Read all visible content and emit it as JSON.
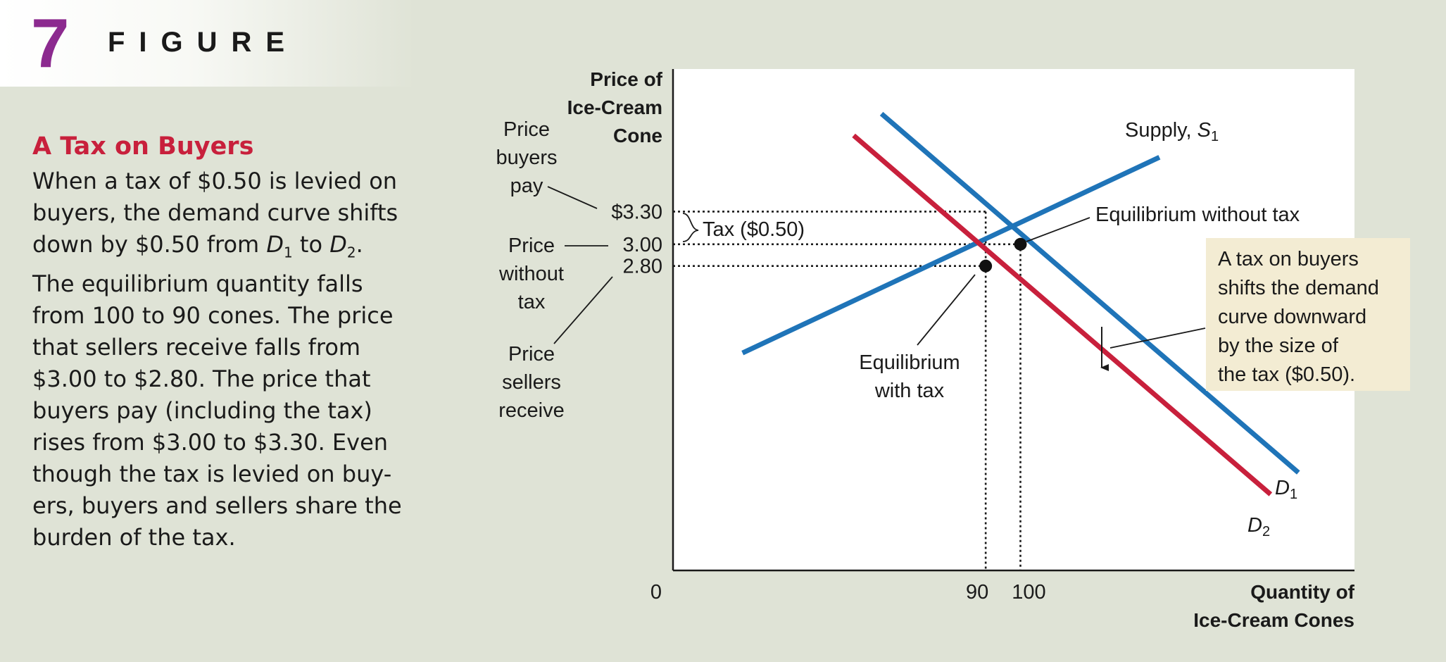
{
  "figure": {
    "number": "7",
    "label": "FIGURE"
  },
  "caption": {
    "title": "A Tax on Buyers",
    "lines": [
      "When a tax of $0.50 is levied on",
      "buyers, the demand curve shifts",
      "The equilibrium quantity falls",
      "from 100 to 90 cones. The price",
      "that sellers receive falls from",
      "$3.00 to $2.80. The price that",
      "buyers pay (including the tax)",
      "rises from $3.00 to $3.30. Even",
      "though the tax is levied on buy-",
      "ers, buyers and sellers share the",
      "burden of the tax."
    ],
    "line3": {
      "pre": "down by $0.50 from ",
      "d1": "D",
      "d1_sub": "1",
      "mid": " to ",
      "d2": "D",
      "d2_sub": "2",
      "post": "."
    }
  },
  "chart_data": {
    "type": "line",
    "ylabel": [
      "Price of",
      "Ice-Cream",
      "Cone"
    ],
    "xlabel": [
      "Quantity of",
      "Ice-Cream Cones"
    ],
    "origin_label": "0",
    "x_ticks": [
      {
        "value": 90,
        "label": "90"
      },
      {
        "value": 100,
        "label": "100"
      }
    ],
    "y_ticks": [
      {
        "value": 3.3,
        "label": "$3.30"
      },
      {
        "value": 3.0,
        "label": "3.00"
      },
      {
        "value": 2.8,
        "label": "2.80"
      }
    ],
    "series": [
      {
        "name": "Supply",
        "sub": "1",
        "letter": "S",
        "color": "#1f74b8",
        "points": [
          [
            20,
            2.0
          ],
          [
            140,
            3.8
          ]
        ]
      },
      {
        "name": "D",
        "sub": "1",
        "color": "#1f74b8",
        "points": [
          [
            60,
            4.2
          ],
          [
            180,
            0.9
          ]
        ]
      },
      {
        "name": "D",
        "sub": "2",
        "color": "#c8203c",
        "points": [
          [
            52,
            4.0
          ],
          [
            172,
            0.7
          ]
        ]
      }
    ],
    "equilibria": [
      {
        "label": "Equilibrium without tax",
        "q": 100,
        "p": 3.0
      },
      {
        "label": "Equilibrium with tax",
        "q": 90,
        "p": 2.8
      }
    ],
    "annotations": {
      "tax_label": "Tax ($0.50)",
      "buyers_pay": [
        "Price",
        "buyers",
        "pay"
      ],
      "without_tax": [
        "Price",
        "without",
        "tax"
      ],
      "sellers_receive": [
        "Price",
        "sellers",
        "receive"
      ],
      "eq_with_tax": [
        "Equilibrium",
        "with tax"
      ],
      "callout": [
        "A tax on buyers",
        "shifts the demand",
        "curve downward",
        "by the size of",
        "the tax ($0.50)."
      ]
    }
  }
}
